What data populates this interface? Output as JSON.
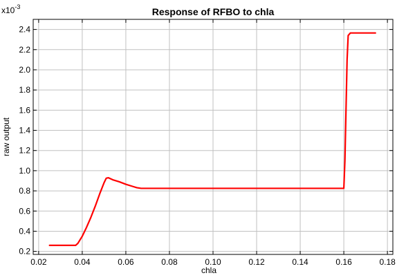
{
  "chart_data": {
    "type": "line",
    "title": "Response of RFBO to chla",
    "xlabel": "chla",
    "ylabel": "raw output",
    "y_multiplier_label": "x10",
    "y_multiplier_exponent": "-3",
    "xlim": [
      0.0175,
      0.1825
    ],
    "ylim": [
      0.17,
      2.5
    ],
    "x_ticks": [
      0.02,
      0.04,
      0.06,
      0.08,
      0.1,
      0.12,
      0.14,
      0.16,
      0.18
    ],
    "x_tick_labels": [
      "0.02",
      "0.04",
      "0.06",
      "0.08",
      "0.10",
      "0.12",
      "0.14",
      "0.16",
      "0.18"
    ],
    "y_ticks": [
      0.2,
      0.4,
      0.6,
      0.8,
      1.0,
      1.2,
      1.4,
      1.6,
      1.8,
      2.0,
      2.2,
      2.4
    ],
    "y_tick_labels": [
      "0.2",
      "0.4",
      "0.6",
      "0.8",
      "1.0",
      "1.2",
      "1.4",
      "1.6",
      "1.8",
      "2.0",
      "2.2",
      "2.4"
    ],
    "grid": true,
    "series": [
      {
        "color": "#ff0000",
        "x": [
          0.025,
          0.037,
          0.038,
          0.04,
          0.042,
          0.044,
          0.046,
          0.048,
          0.05,
          0.051,
          0.052,
          0.054,
          0.057,
          0.06,
          0.063,
          0.065,
          0.067,
          0.08,
          0.1,
          0.12,
          0.14,
          0.16,
          0.1605,
          0.161,
          0.1615,
          0.162,
          0.163,
          0.165,
          0.17,
          0.1745
        ],
        "y": [
          0.26,
          0.26,
          0.28,
          0.35,
          0.44,
          0.54,
          0.65,
          0.77,
          0.88,
          0.925,
          0.93,
          0.91,
          0.89,
          0.865,
          0.845,
          0.832,
          0.825,
          0.825,
          0.825,
          0.825,
          0.825,
          0.825,
          1.1,
          1.6,
          2.1,
          2.34,
          2.365,
          2.365,
          2.365,
          2.365
        ]
      }
    ]
  }
}
